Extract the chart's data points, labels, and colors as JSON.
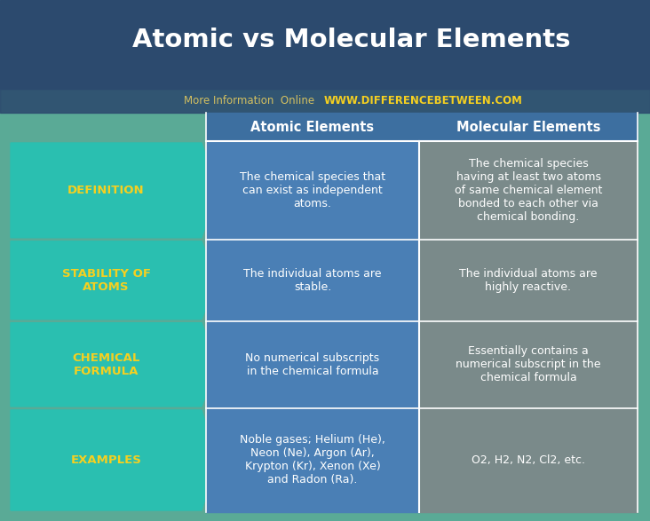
{
  "title": "Atomic vs Molecular Elements",
  "subtitle_normal": "More Information  Online  ",
  "subtitle_url": "WWW.DIFFERENCEBETWEEN.COM",
  "col_headers": [
    "Atomic Elements",
    "Molecular Elements"
  ],
  "row_labels": [
    "DEFINITION",
    "STABILITY OF\nATOMS",
    "CHEMICAL\nFORMULA",
    "EXAMPLES"
  ],
  "atomic_data": [
    "The chemical species that\ncan exist as independent\natoms.",
    "The individual atoms are\nstable.",
    "No numerical subscripts\nin the chemical formula",
    "Noble gases; Helium (He),\nNeon (Ne), Argon (Ar),\nKrypton (Kr), Xenon (Xe)\nand Radon (Ra)."
  ],
  "molecular_data": [
    "The chemical species\nhaving at least two atoms\nof same chemical element\nbonded to each other via\nchemical bonding.",
    "The individual atoms are\nhighly reactive.",
    "Essentially contains a\nnumerical subscript in the\nchemical formula",
    "O2, H2, N2, Cl2, etc."
  ],
  "title_bg": "#2c4a6e",
  "title_color": "#ffffff",
  "header_bg": "#3d6fa0",
  "header_color": "#ffffff",
  "row_label_bg": "#2abfb0",
  "row_label_color": "#f5d020",
  "atomic_bg": "#4a7fb5",
  "atomic_color": "#ffffff",
  "molecular_bg": "#7a8a8a",
  "molecular_color": "#ffffff",
  "subtitle_color": "#d4c060",
  "url_color": "#f5d020",
  "separator_color": "#ffffff",
  "bg_color": "#5aaa96",
  "title_bar_height": 100,
  "subtitle_bar_height": 27,
  "figw": 732,
  "figh": 587
}
